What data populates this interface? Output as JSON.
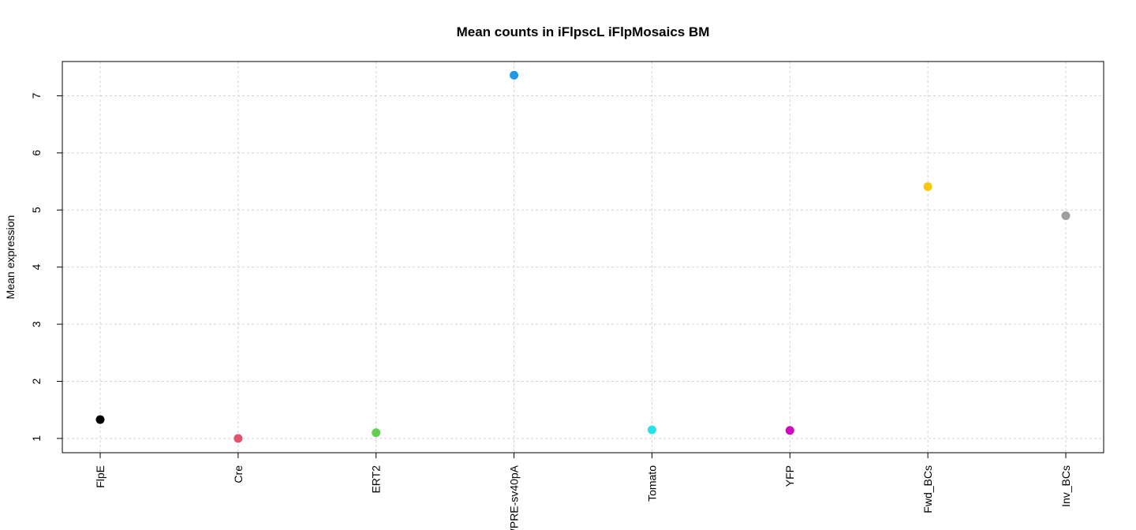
{
  "chart_data": {
    "type": "scatter",
    "title": "Mean counts in iFlpscL iFlpMosaics BM",
    "xlabel": "",
    "ylabel": "Mean expression",
    "ylim": [
      0.75,
      7.6
    ],
    "yticks": [
      1,
      2,
      3,
      4,
      5,
      6,
      7
    ],
    "grid": true,
    "categories": [
      "FlpE",
      "Cre",
      "ERT2",
      "WPRE-sv40pA",
      "Tomato",
      "YFP",
      "Fwd_BCs",
      "Inv_BCs"
    ],
    "values": [
      1.33,
      1.0,
      1.1,
      7.36,
      1.15,
      1.14,
      5.41,
      4.9
    ],
    "colors": [
      "#000000",
      "#DF536B",
      "#61D04F",
      "#2297E6",
      "#28E2E5",
      "#CD0BBC",
      "#F5C710",
      "#9E9E9E"
    ]
  }
}
